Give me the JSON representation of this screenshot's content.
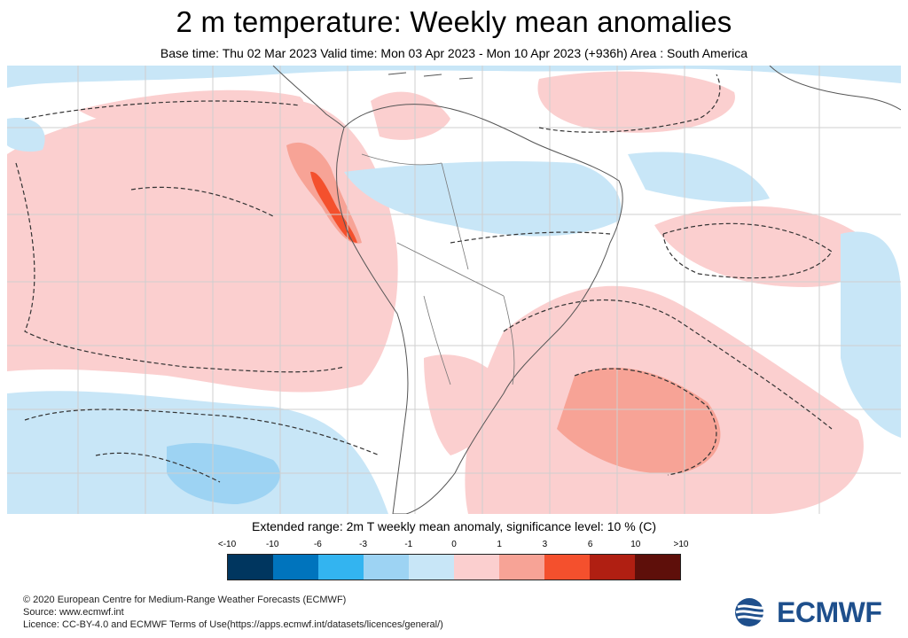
{
  "header": {
    "title": "2 m temperature: Weekly mean anomalies",
    "subtitle": "Base time: Thu 02 Mar 2023 Valid time: Mon 03 Apr 2023 - Mon 10 Apr 2023 (+936h) Area : South America"
  },
  "map": {
    "region": "South America",
    "colors": {
      "warm_light": "#fbcfcf",
      "warm_mid": "#f7a396",
      "warm_strong": "#f4502d",
      "cold_light": "#c8e6f7",
      "cold_mid": "#9dd3f3",
      "land_border": "#555555",
      "contour": "#333333",
      "grid": "#cfcfcf"
    }
  },
  "legend": {
    "title": "Extended range: 2m T weekly mean anomaly, significance level: 10 % (C)",
    "ticks": [
      "<-10",
      "-10",
      "-6",
      "-3",
      "-1",
      "0",
      "1",
      "3",
      "6",
      "10",
      ">10"
    ],
    "colors": [
      "#00365f",
      "#0074bd",
      "#33b4f0",
      "#9dd3f3",
      "#c8e6f7",
      "#fbcfcf",
      "#f7a396",
      "#f4502d",
      "#b01f12",
      "#5e0f0a"
    ]
  },
  "footer": {
    "line1": "© 2020 European Centre for Medium-Range Weather Forecasts (ECMWF)",
    "line2": "Source: www.ecmwf.int",
    "line3": "Licence: CC-BY-4.0 and ECMWF Terms of Use(https://apps.ecmwf.int/datasets/licences/general/)"
  },
  "logo": {
    "text": "ECMWF",
    "icon": "ecmwf-logo-icon"
  }
}
